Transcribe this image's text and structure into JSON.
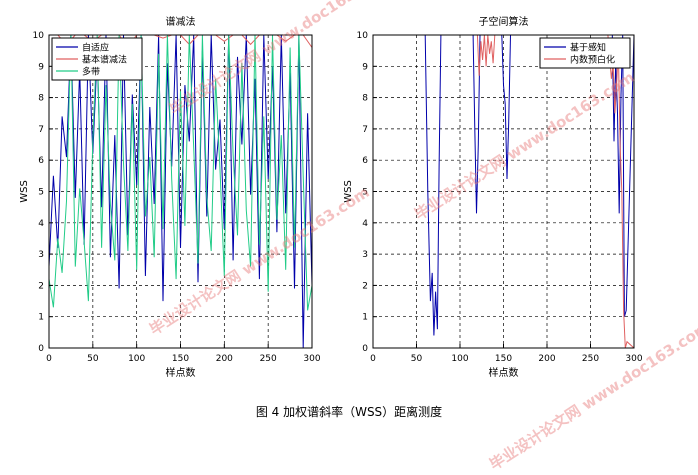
{
  "chart_data": [
    {
      "type": "line",
      "title": "谱减法",
      "xlabel": "样点数",
      "ylabel": "WSS",
      "xlim": [
        0,
        300
      ],
      "ylim": [
        0,
        10
      ],
      "xticks": [
        0,
        50,
        100,
        150,
        200,
        250,
        300
      ],
      "yticks": [
        0,
        1,
        2,
        3,
        4,
        5,
        6,
        7,
        8,
        9,
        10
      ],
      "grid": true,
      "legend_position": "top-left",
      "series": [
        {
          "name": "自适应",
          "color": "#0000aa",
          "x": [
            0,
            5,
            10,
            15,
            20,
            25,
            30,
            35,
            40,
            45,
            50,
            55,
            60,
            65,
            70,
            75,
            80,
            85,
            90,
            95,
            100,
            105,
            110,
            115,
            120,
            125,
            130,
            135,
            140,
            145,
            150,
            155,
            160,
            165,
            170,
            175,
            180,
            185,
            190,
            195,
            200,
            205,
            210,
            215,
            220,
            225,
            230,
            235,
            240,
            245,
            250,
            255,
            260,
            265,
            270,
            275,
            280,
            285,
            290,
            295,
            300
          ],
          "values": [
            2.6,
            5.5,
            3.2,
            7.4,
            6.1,
            10,
            4.8,
            8.9,
            3.3,
            10,
            6.2,
            9.4,
            4.5,
            10,
            2.9,
            6.8,
            1.9,
            10,
            3.6,
            8.1,
            5.2,
            10,
            2.3,
            7.7,
            4.6,
            10,
            1.5,
            9.1,
            5.8,
            10,
            3.2,
            8.4,
            6.6,
            10,
            2.1,
            9.5,
            4.2,
            10,
            5.7,
            7.3,
            3.8,
            10,
            2.8,
            9.3,
            6.5,
            10,
            4.9,
            8.6,
            2.2,
            10,
            5.4,
            9.0,
            3.7,
            10,
            4.3,
            8.8,
            1.9,
            10,
            0.0,
            7.5,
            2.0
          ]
        },
        {
          "name": "基本谱减法",
          "color": "#e06060",
          "x": [
            0,
            10,
            20,
            30,
            40,
            50,
            60,
            70,
            80,
            90,
            100,
            110,
            120,
            130,
            140,
            150,
            160,
            170,
            180,
            190,
            200,
            210,
            220,
            230,
            240,
            250,
            260,
            270,
            280,
            290,
            300
          ],
          "values": [
            10,
            10,
            9.7,
            10,
            10,
            9.8,
            10,
            10,
            10,
            9.6,
            10,
            10,
            10,
            9.9,
            10,
            10,
            9.7,
            10,
            10,
            10,
            9.8,
            10,
            10,
            9.7,
            10,
            10,
            10,
            9.8,
            10,
            10,
            9.6
          ]
        },
        {
          "name": "多带",
          "color": "#22cc88",
          "x": [
            0,
            5,
            10,
            15,
            20,
            25,
            30,
            35,
            40,
            45,
            50,
            55,
            60,
            65,
            70,
            75,
            80,
            85,
            90,
            95,
            100,
            105,
            110,
            115,
            120,
            125,
            130,
            135,
            140,
            145,
            150,
            155,
            160,
            165,
            170,
            175,
            180,
            185,
            190,
            195,
            200,
            205,
            210,
            215,
            220,
            225,
            230,
            235,
            240,
            245,
            250,
            255,
            260,
            265,
            270,
            275,
            280,
            285,
            290,
            295,
            300
          ],
          "values": [
            2.2,
            1.3,
            3.5,
            2.4,
            4.7,
            10,
            2.6,
            5.1,
            3.4,
            1.5,
            6.6,
            10,
            3.2,
            8.4,
            4.6,
            2.8,
            10,
            5.9,
            3.1,
            7.8,
            2.5,
            10,
            4.2,
            6.1,
            2.9,
            9.4,
            3.8,
            10,
            5.4,
            2.2,
            8.2,
            3.9,
            10,
            6.4,
            2.7,
            10,
            4.8,
            3.1,
            8.6,
            5.7,
            2.3,
            10,
            6.2,
            3.6,
            9.1,
            4.4,
            2.6,
            10,
            3.3,
            7.4,
            1.8,
            10,
            4.1,
            6.8,
            2.5,
            9.6,
            3.2,
            10,
            5.5,
            1.2,
            2.0
          ]
        }
      ]
    },
    {
      "type": "line",
      "title": "子空间算法",
      "xlabel": "样点数",
      "ylabel": "WSS",
      "xlim": [
        0,
        300
      ],
      "ylim": [
        0,
        10
      ],
      "xticks": [
        0,
        50,
        100,
        150,
        200,
        250,
        300
      ],
      "yticks": [
        0,
        1,
        2,
        3,
        4,
        5,
        6,
        7,
        8,
        9,
        10
      ],
      "grid": true,
      "legend_position": "top-right",
      "series": [
        {
          "name": "基于感知",
          "color": "#0000aa",
          "x": [
            0,
            60,
            63,
            66,
            68,
            70,
            72,
            74,
            76,
            78,
            80,
            115,
            117,
            119,
            121,
            123,
            125,
            148,
            150,
            152,
            154,
            156,
            158,
            275,
            277,
            279,
            281,
            283,
            285,
            287,
            289,
            291,
            300
          ],
          "values": [
            10,
            10,
            5.0,
            1.5,
            2.4,
            0.4,
            1.8,
            0.6,
            5.8,
            10,
            10,
            10,
            7.0,
            4.3,
            6.5,
            10,
            10,
            10,
            8.4,
            7.8,
            5.4,
            7.2,
            10,
            10,
            6.6,
            9.2,
            7.5,
            4.3,
            8.1,
            10,
            1.0,
            1.2,
            10
          ]
        },
        {
          "name": "内数预白化",
          "color": "#e06060",
          "x": [
            0,
            120,
            122,
            124,
            126,
            128,
            130,
            132,
            134,
            136,
            138,
            140,
            150,
            270,
            272,
            274,
            276,
            278,
            280,
            282,
            284,
            286,
            288,
            290,
            292,
            300
          ],
          "values": [
            10,
            10,
            8.7,
            9.8,
            9.2,
            10,
            9.0,
            10,
            9.4,
            9.8,
            9.1,
            10,
            10,
            10,
            9.3,
            8.6,
            9.1,
            7.5,
            8.4,
            9.6,
            6.5,
            5.0,
            1.2,
            0.0,
            0.2,
            0.0
          ]
        }
      ]
    }
  ],
  "caption": "图 4 加权谱斜率（WSS）距离测度",
  "watermark": {
    "line1": "毕业设计论文网",
    "line2": "www.doc163.com"
  }
}
